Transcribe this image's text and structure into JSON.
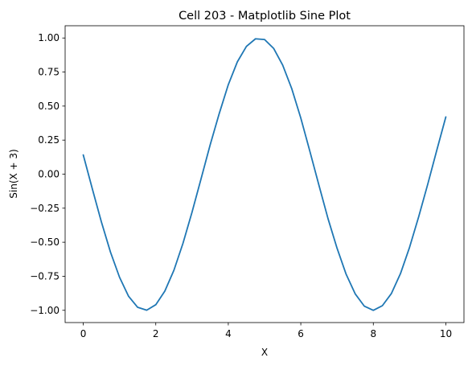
{
  "chart_data": {
    "type": "line",
    "title": "Cell 203 - Matplotlib Sine Plot",
    "xlabel": "X",
    "ylabel": "Sin(X + 3)",
    "xlim": [
      -0.5,
      10.5
    ],
    "ylim": [
      -1.09,
      1.09
    ],
    "x_ticks": [
      0,
      2,
      4,
      6,
      8,
      10
    ],
    "x_tick_labels": [
      "0",
      "2",
      "4",
      "6",
      "8",
      "10"
    ],
    "y_ticks": [
      -1.0,
      -0.75,
      -0.5,
      -0.25,
      0.0,
      0.25,
      0.5,
      0.75,
      1.0
    ],
    "y_tick_labels": [
      "−1.00",
      "−0.75",
      "−0.50",
      "−0.25",
      "0.00",
      "0.25",
      "0.50",
      "0.75",
      "1.00"
    ],
    "grid": false,
    "series": [
      {
        "color": "#1f77b4",
        "x": [
          0,
          0.25,
          0.5,
          0.75,
          1,
          1.25,
          1.5,
          1.75,
          2,
          2.25,
          2.5,
          2.75,
          3,
          3.25,
          3.5,
          3.75,
          4,
          4.25,
          4.5,
          4.75,
          5,
          5.25,
          5.5,
          5.75,
          6,
          6.25,
          6.5,
          6.75,
          7,
          7.25,
          7.5,
          7.75,
          8,
          8.25,
          8.5,
          8.75,
          9,
          9.25,
          9.5,
          9.75,
          10
        ],
        "y": [
          0.141,
          -0.108,
          -0.351,
          -0.572,
          -0.757,
          -0.897,
          -0.978,
          -0.999,
          -0.959,
          -0.859,
          -0.706,
          -0.508,
          -0.279,
          -0.033,
          0.215,
          0.445,
          0.657,
          0.825,
          0.938,
          0.994,
          0.989,
          0.924,
          0.801,
          0.628,
          0.412,
          0.168,
          -0.081,
          -0.326,
          -0.544,
          -0.735,
          -0.879,
          -0.969,
          -1.0,
          -0.966,
          -0.876,
          -0.73,
          -0.537,
          -0.314,
          -0.075,
          0.175,
          0.42
        ]
      }
    ]
  }
}
